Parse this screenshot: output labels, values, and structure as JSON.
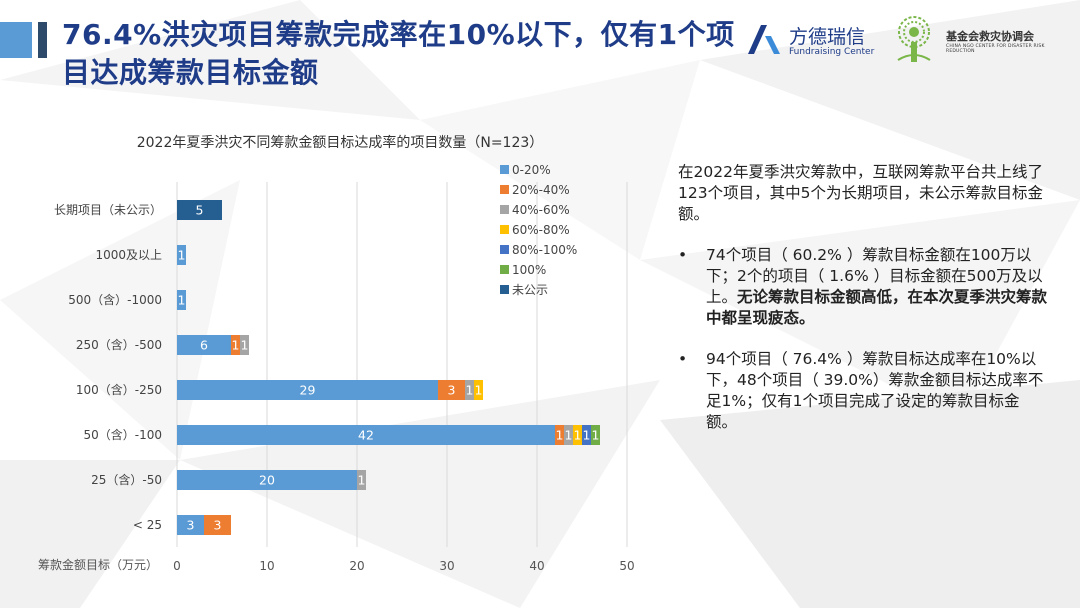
{
  "header": {
    "title": "76.4%洪灾项目筹款完成率在10%以下，仅有1个项目达成筹款目标金额"
  },
  "logos": {
    "logo1_name": "方德瑞信",
    "logo1_sub": "Fundraising Center",
    "logo2_name": "基金会救灾协调会",
    "logo2_sub": "CHINA NGO CENTER FOR DISASTER RISK REDUCTION"
  },
  "right_text": {
    "intro": "在2022年夏季洪灾筹款中，互联网筹款平台共上线了123个项目，其中5个为长期项目，未公示筹款目标金额。",
    "bullet_char": "•",
    "bullet1_normal": "74个项目（ 60.2% ）筹款目标金额在100万以下；2个的项目（ 1.6% ）目标金额在500万及以上。",
    "bullet1_bold": "无论筹款目标金额高低，在本次夏季洪灾筹款中都呈现疲态。",
    "bullet2": "94个项目（ 76.4% ）筹款目标达成率在10%以下，48个项目（ 39.0%）筹款金额目标达成率不足1%；仅有1个项目完成了设定的筹款目标金额。"
  },
  "colors": {
    "title": "#1f3c88",
    "accent": "#5b9bd5"
  },
  "chart_data": {
    "type": "bar",
    "orientation": "horizontal",
    "stacked": true,
    "title": "2022年夏季洪灾不同筹款金额目标达成率的项目数量（N=123）",
    "ylabel": "筹款金额目标（万元）",
    "xlabel": "",
    "xlim": [
      0,
      50
    ],
    "xticks": [
      0,
      10,
      20,
      30,
      40,
      50
    ],
    "grid": true,
    "legend_position": "top-right",
    "categories": [
      "长期项目（未公示）",
      "1000及以上",
      "500（含）-1000",
      "250（含）-500",
      "100（含）-250",
      "50（含）-100",
      "25（含）-50",
      "< 25"
    ],
    "series": [
      {
        "name": "0-20%",
        "color": "#5b9bd5",
        "values": [
          0,
          1,
          1,
          6,
          29,
          42,
          20,
          3
        ]
      },
      {
        "name": "20%-40%",
        "color": "#ed7d31",
        "values": [
          0,
          0,
          0,
          1,
          3,
          1,
          0,
          3
        ]
      },
      {
        "name": "40%-60%",
        "color": "#a5a5a5",
        "values": [
          0,
          0,
          0,
          1,
          1,
          1,
          1,
          0
        ]
      },
      {
        "name": "60%-80%",
        "color": "#ffc000",
        "values": [
          0,
          0,
          0,
          0,
          1,
          1,
          0,
          0
        ]
      },
      {
        "name": "80%-100%",
        "color": "#4472c4",
        "values": [
          0,
          0,
          0,
          0,
          0,
          1,
          0,
          0
        ]
      },
      {
        "name": "100%",
        "color": "#70ad47",
        "values": [
          0,
          0,
          0,
          0,
          0,
          1,
          0,
          0
        ]
      },
      {
        "name": "未公示",
        "color": "#255e91",
        "values": [
          5,
          0,
          0,
          0,
          0,
          0,
          0,
          0
        ]
      }
    ]
  }
}
